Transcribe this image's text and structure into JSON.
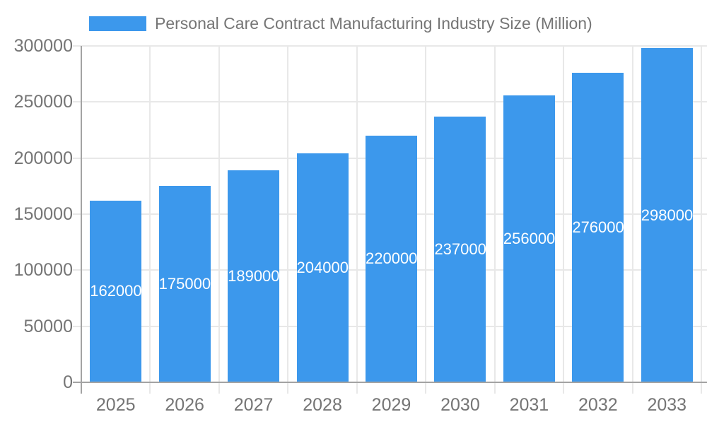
{
  "chart_data": {
    "type": "bar",
    "title": "Personal Care Contract Manufacturing Industry Size (Million)",
    "categories": [
      "2025",
      "2026",
      "2027",
      "2028",
      "2029",
      "2030",
      "2031",
      "2032",
      "2033"
    ],
    "values": [
      162000,
      175000,
      189000,
      204000,
      220000,
      237000,
      256000,
      276000,
      298000
    ],
    "bar_labels": [
      "162000",
      "175000",
      "189000",
      "204000",
      "220000",
      "237000",
      "256000",
      "276000",
      "298000"
    ],
    "xlabel": "",
    "ylabel": "",
    "ylim": [
      0,
      300000
    ],
    "y_ticks": [
      0,
      50000,
      100000,
      150000,
      200000,
      250000,
      300000
    ],
    "y_tick_labels": [
      "0",
      "50000",
      "100000",
      "150000",
      "200000",
      "250000",
      "300000"
    ],
    "grid": "on",
    "legend_position": "top-left",
    "colors": {
      "bar": "#3C98EC",
      "axis_text": "#757575",
      "title_text": "#757575",
      "bar_label_text": "#FFFFFF",
      "gridline": "#E8E8E8",
      "axis_line": "#A3A3A3"
    }
  }
}
